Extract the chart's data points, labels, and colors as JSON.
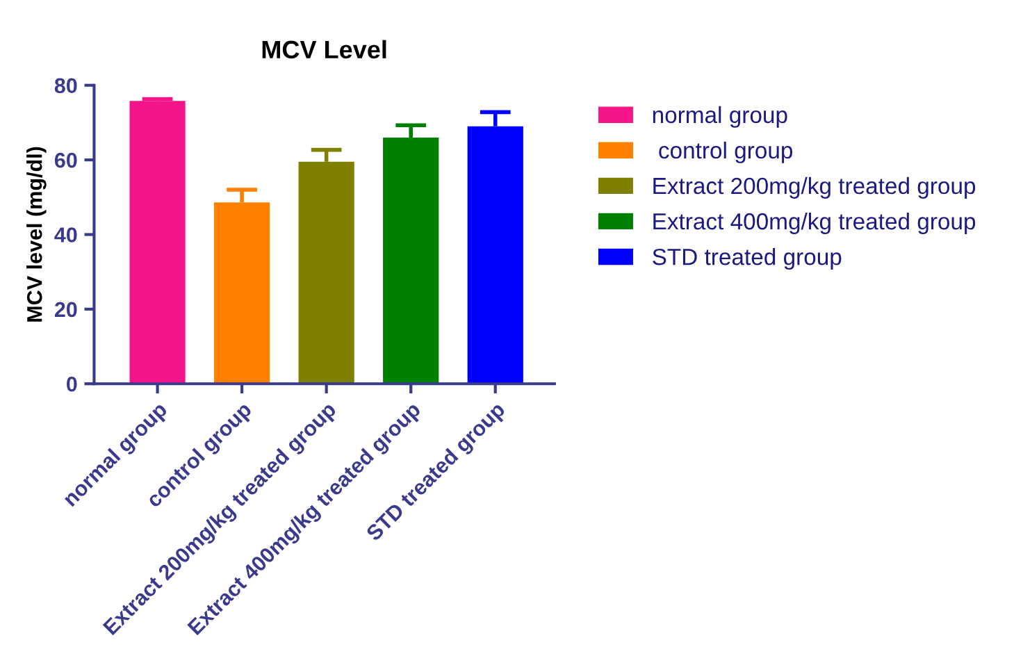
{
  "chart_data": {
    "type": "bar",
    "title": "MCV Level",
    "ylabel": "MCV level (mg/dl)",
    "categories": [
      "normal group",
      "control group",
      "Extract 200mg/kg treated group",
      "Extract 400mg/kg treated group",
      "STD treated group"
    ],
    "series": [
      {
        "name": "normal group",
        "color": "#f5158a",
        "values": [
          75.8,
          null,
          null,
          null,
          null
        ],
        "errors": [
          [
            75.8,
            76.3
          ],
          null,
          null,
          null,
          null
        ]
      },
      {
        "name": " control group",
        "color": "#ff8000",
        "values": [
          null,
          48.6,
          null,
          null,
          null
        ],
        "errors": [
          null,
          [
            48.6,
            52.0
          ],
          null,
          null,
          null
        ]
      },
      {
        "name": "Extract 200mg/kg treated group",
        "color": "#808000",
        "values": [
          null,
          null,
          59.5,
          null,
          null
        ],
        "errors": [
          null,
          null,
          [
            59.5,
            62.7
          ],
          null,
          null
        ]
      },
      {
        "name": "Extract 400mg/kg treated group",
        "color": "#008000",
        "values": [
          null,
          null,
          null,
          66.0,
          null
        ],
        "errors": [
          null,
          null,
          null,
          [
            66.0,
            69.3
          ],
          null
        ]
      },
      {
        "name": "STD treated group",
        "color": "#0000ff",
        "values": [
          null,
          null,
          null,
          null,
          69.0
        ],
        "errors": [
          null,
          null,
          null,
          null,
          [
            69.0,
            72.8
          ]
        ]
      }
    ],
    "ylim": [
      0,
      80
    ],
    "yticks": [
      0,
      20,
      40,
      60,
      80
    ],
    "legend": "right",
    "grid": false
  }
}
